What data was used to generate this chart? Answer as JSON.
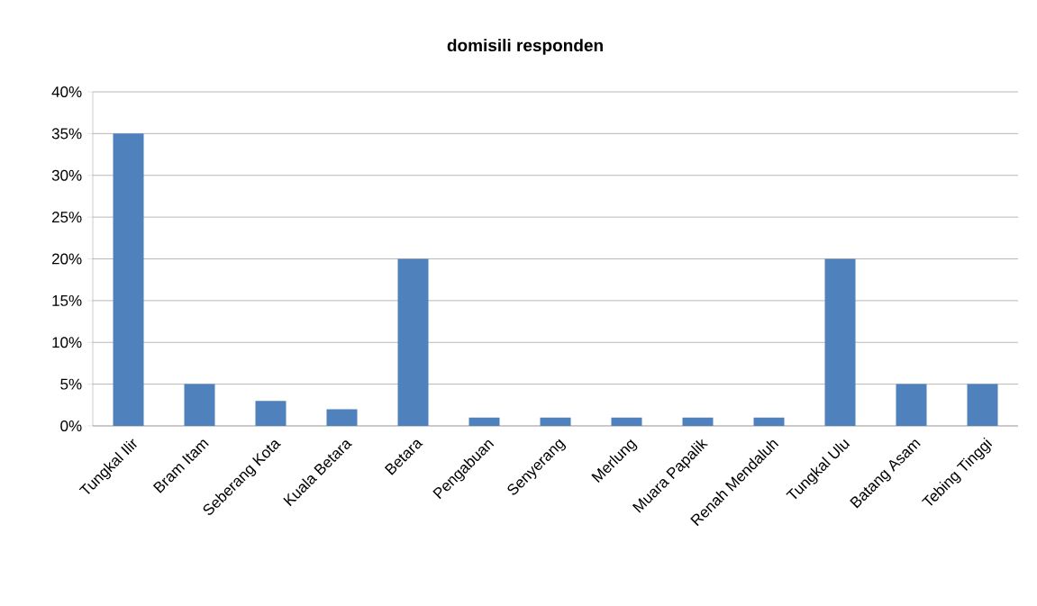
{
  "chart_data": {
    "type": "bar",
    "title": "domisili responden",
    "categories": [
      "Tungkal Ilir",
      "Bram Itam",
      "Seberang Kota",
      "Kuala Betara",
      "Betara",
      "Pengabuan",
      "Senyerang",
      "Merlung",
      "Muara Papalik",
      "Renah Mendaluh",
      "Tungkal Ulu",
      "Batang Asam",
      "Tebing Tinggi"
    ],
    "values": [
      35,
      5,
      3,
      2,
      20,
      1,
      1,
      1,
      1,
      1,
      20,
      5,
      5
    ],
    "color": "#4f81bd",
    "ylim": [
      0,
      40
    ],
    "yticks": [
      {
        "value": 0,
        "label": "0%"
      },
      {
        "value": 5,
        "label": "5%"
      },
      {
        "value": 10,
        "label": "10%"
      },
      {
        "value": 15,
        "label": "15%"
      },
      {
        "value": 20,
        "label": "20%"
      },
      {
        "value": 25,
        "label": "25%"
      },
      {
        "value": 30,
        "label": "30%"
      },
      {
        "value": 35,
        "label": "35%"
      },
      {
        "value": 40,
        "label": "40%"
      }
    ],
    "grid": "y"
  }
}
